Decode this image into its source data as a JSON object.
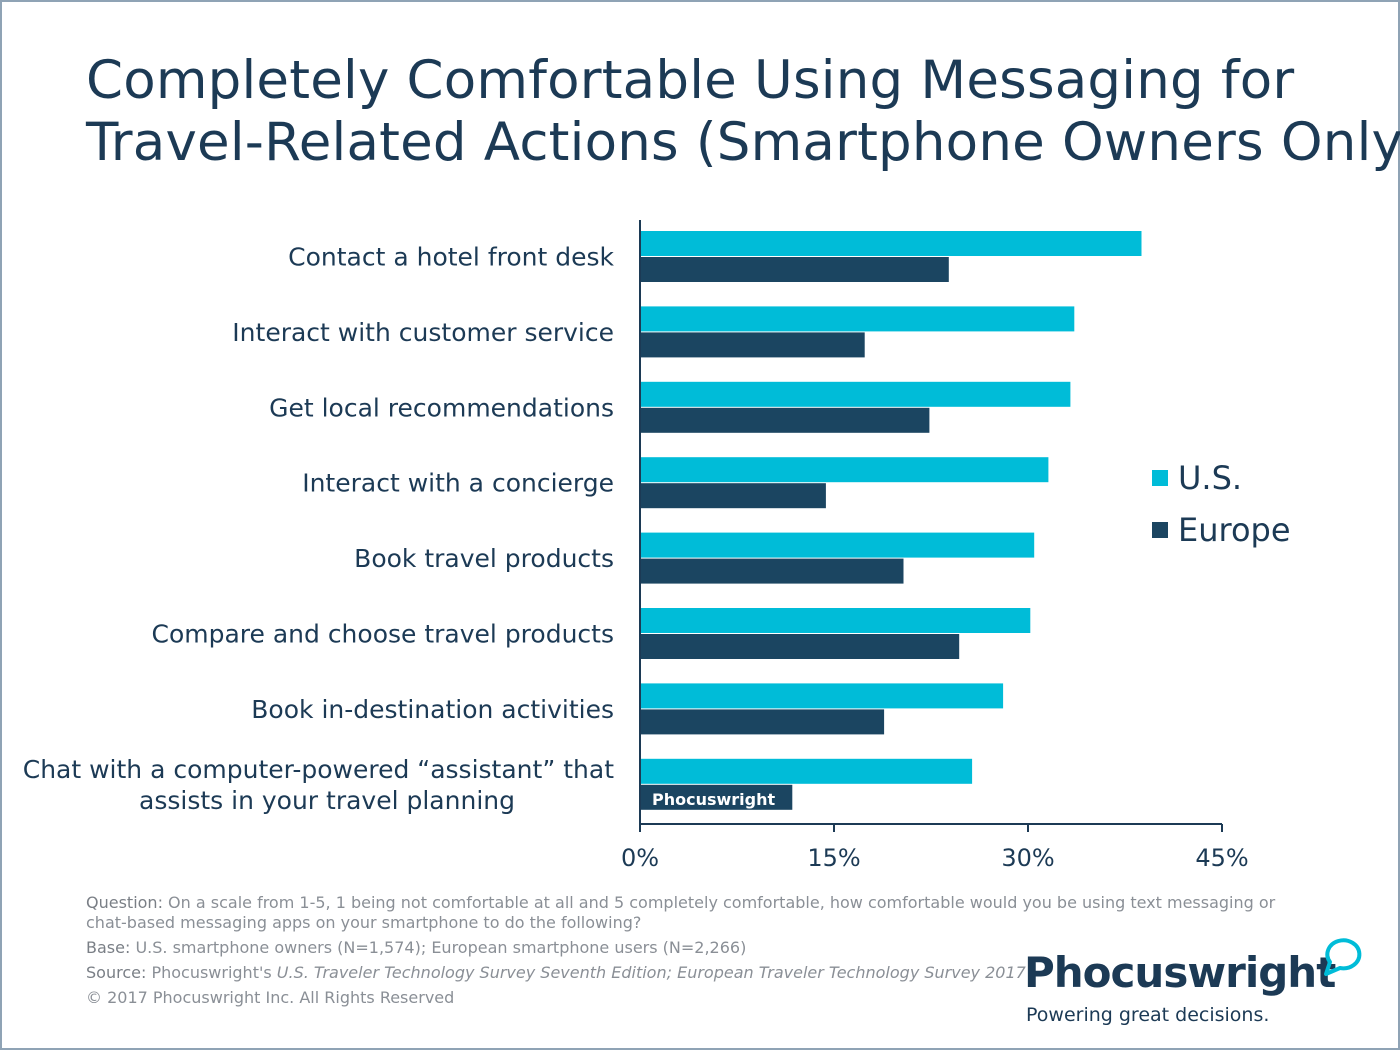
{
  "title_lines": [
    "Completely Comfortable Using Messaging for",
    "Travel-Related Actions (Smartphone Owners Only)"
  ],
  "chart_data": {
    "type": "bar",
    "orientation": "horizontal",
    "categories": [
      [
        "Contact a hotel front desk"
      ],
      [
        "Interact with customer service"
      ],
      [
        "Get local recommendations"
      ],
      [
        "Interact with a concierge"
      ],
      [
        "Book travel products"
      ],
      [
        "Compare and choose travel products"
      ],
      [
        "Book in-destination activities"
      ],
      [
        "Chat with a computer-powered “assistant” that",
        "assists in your travel planning"
      ]
    ],
    "series": [
      {
        "name": "U.S.",
        "color": "#00bcd8",
        "values": [
          38.7,
          33.5,
          33.2,
          31.5,
          30.4,
          30.1,
          28.0,
          25.6
        ]
      },
      {
        "name": "Europe",
        "color": "#1b4561",
        "values": [
          23.8,
          17.3,
          22.3,
          14.3,
          20.3,
          24.6,
          18.8,
          11.7
        ]
      }
    ],
    "xlim": [
      0,
      45
    ],
    "ticks": [
      0,
      15,
      30,
      45
    ],
    "tick_labels": [
      "0%",
      "15%",
      "30%",
      "45%"
    ],
    "legend_position": "right"
  },
  "legend": {
    "us": "U.S.",
    "europe": "Europe",
    "us_color": "#00bcd8",
    "europe_color": "#1b4561"
  },
  "notes": {
    "question_label": "Question:",
    "question": "On a scale from 1-5, 1 being not comfortable at all and 5 completely comfortable, how comfortable would you be using text messaging or chat-based messaging apps on your smartphone to do the following?",
    "base_label": "Base:",
    "base": "U.S. smartphone owners (N=1,574); European smartphone users (N=2,266)",
    "source_label": "Source:",
    "source_prefix": "Phocuswright's",
    "source_titles": "U.S. Traveler Technology Survey Seventh Edition; European Traveler Technology Survey 2017",
    "copyright": "© 2017 Phocuswright Inc. All Rights Reserved"
  },
  "logo": {
    "word": "Phocuswright",
    "tagline": "Powering great decisions.",
    "watermark": "Phocuswright"
  }
}
